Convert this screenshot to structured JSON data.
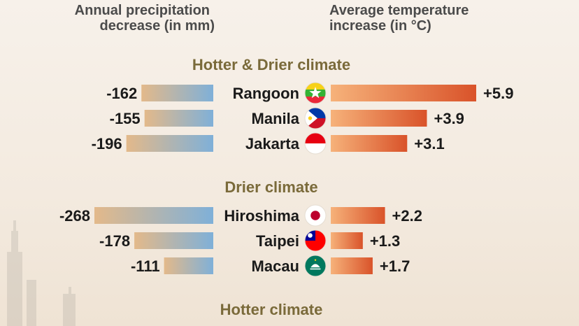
{
  "chart_data": {
    "type": "bar",
    "left_header": [
      "Annual precipitation",
      "decrease (in mm)"
    ],
    "right_header": [
      "Average temperature",
      "increase (in °C)"
    ],
    "groups": [
      {
        "title": "Hotter & Drier climate",
        "rows": [
          {
            "city": "Rangoon",
            "flag": "myanmar-flag-icon",
            "precipitation": -162,
            "precipitation_label": "-162",
            "temperature": 5.9,
            "temperature_label": "+5.9"
          },
          {
            "city": "Manila",
            "flag": "philippines-flag-icon",
            "precipitation": -155,
            "precipitation_label": "-155",
            "temperature": 3.9,
            "temperature_label": "+3.9"
          },
          {
            "city": "Jakarta",
            "flag": "indonesia-flag-icon",
            "precipitation": -196,
            "precipitation_label": "-196",
            "temperature": 3.1,
            "temperature_label": "+3.1"
          }
        ]
      },
      {
        "title": "Drier climate",
        "rows": [
          {
            "city": "Hiroshima",
            "flag": "japan-flag-icon",
            "precipitation": -268,
            "precipitation_label": "-268",
            "temperature": 2.2,
            "temperature_label": "+2.2"
          },
          {
            "city": "Taipei",
            "flag": "taiwan-flag-icon",
            "precipitation": -178,
            "precipitation_label": "-178",
            "temperature": 1.3,
            "temperature_label": "+1.3"
          },
          {
            "city": "Macau",
            "flag": "macau-flag-icon",
            "precipitation": -111,
            "precipitation_label": "-111",
            "temperature": 1.7,
            "temperature_label": "+1.7"
          }
        ]
      },
      {
        "title": "Hotter climate",
        "rows": []
      }
    ],
    "colors": {
      "precip_start": "#e3b98a",
      "precip_end": "#7fb0d8",
      "temp_start": "#f6b27a",
      "temp_end": "#d9532a",
      "section_title": "#7a6a3a"
    }
  }
}
